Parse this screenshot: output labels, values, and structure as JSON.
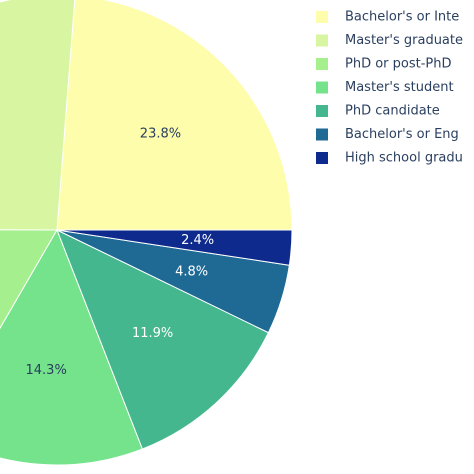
{
  "chart_data": {
    "type": "pie",
    "categories": [
      "Bachelor's or Inte",
      "Master's graduate",
      "PhD or post-PhD",
      "Master's student",
      "PhD candidate",
      "Bachelor's or Eng",
      "High school gradu"
    ],
    "values": [
      23.8,
      26.2,
      16.7,
      14.3,
      11.9,
      4.8,
      2.4
    ],
    "value_labels": [
      "23.8%",
      null,
      null,
      "14.3%",
      "11.9%",
      "4.8%",
      "2.4%"
    ],
    "colors": [
      "#fdfdab",
      "#d8f5a2",
      "#a5ef8e",
      "#74e38b",
      "#45b78e",
      "#1f6a95",
      "#0d2a8c"
    ],
    "label_colors": [
      "#2a3f5f",
      "#2a3f5f",
      "#2a3f5f",
      "#2a3f5f",
      "#ffffff",
      "#ffffff",
      "#ffffff"
    ],
    "direction": "counterclockwise",
    "rotation": 90
  }
}
